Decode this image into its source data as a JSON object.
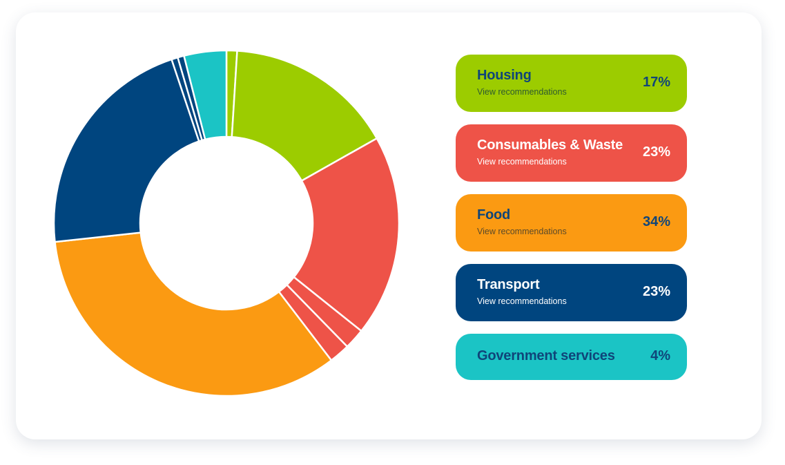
{
  "chart_data": {
    "type": "pie",
    "style": "donut",
    "slices": [
      {
        "label": "Housing",
        "value": 17,
        "color": "#9ccc00",
        "parts": [
          1,
          16
        ]
      },
      {
        "label": "Consumables & Waste",
        "value": 23,
        "color": "#ee5348",
        "parts": [
          19.5,
          2,
          2
        ]
      },
      {
        "label": "Food",
        "value": 34,
        "color": "#fb9a12",
        "parts": [
          34
        ]
      },
      {
        "label": "Transport",
        "value": 23,
        "color": "#00457f",
        "parts": [
          21.8,
          0.6,
          0.6
        ]
      },
      {
        "label": "Government services",
        "value": 4,
        "color": "#1bc4c5",
        "parts": [
          4
        ]
      }
    ]
  },
  "legend": {
    "items": [
      {
        "name": "Housing",
        "percent": "17%",
        "link": "View recommendations",
        "bg": "#9ccc00",
        "name_color": "#0f4579",
        "pct_color": "#0f4579",
        "link_color": "#2e5a30"
      },
      {
        "name": "Consumables & Waste",
        "percent": "23%",
        "link": "View recommendations",
        "bg": "#ee5348",
        "name_color": "#ffffff",
        "pct_color": "#ffffff",
        "link_color": "#ffffff"
      },
      {
        "name": "Food",
        "percent": "34%",
        "link": "View recommendations",
        "bg": "#fb9a12",
        "name_color": "#0f4579",
        "pct_color": "#0f4579",
        "link_color": "#5a4a2a"
      },
      {
        "name": "Transport",
        "percent": "23%",
        "link": "View recommendations",
        "bg": "#00457f",
        "name_color": "#ffffff",
        "pct_color": "#ffffff",
        "link_color": "#ffffff"
      },
      {
        "name": "Government services",
        "percent": "4%",
        "bg": "#1bc4c5",
        "name_color": "#0f4579",
        "pct_color": "#0f4579"
      }
    ]
  }
}
